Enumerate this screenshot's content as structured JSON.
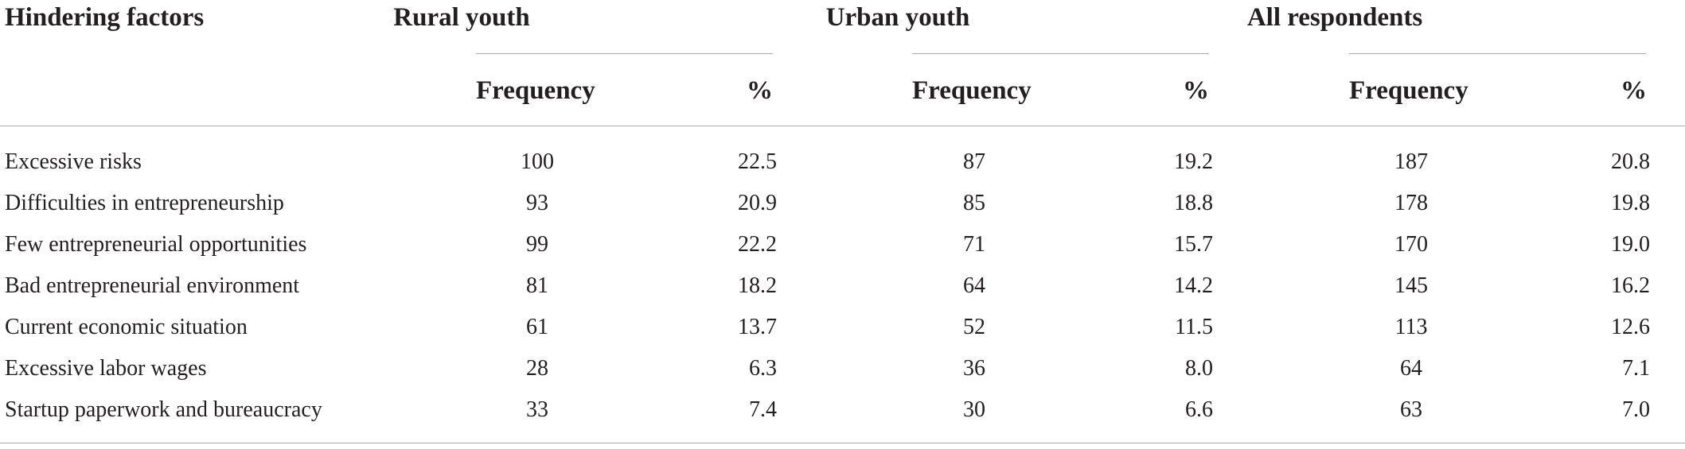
{
  "table": {
    "header": {
      "first_column": "Hindering factors",
      "groups": [
        {
          "label": "Rural youth"
        },
        {
          "label": "Urban youth"
        },
        {
          "label": "All respondents"
        }
      ],
      "sub_columns": [
        "Frequency",
        "%"
      ]
    },
    "rows": [
      {
        "factor": "Excessive risks",
        "values": [
          "100",
          "22.5",
          "87",
          "19.2",
          "187",
          "20.8"
        ]
      },
      {
        "factor": "Difficulties in entrepreneurship",
        "values": [
          "93",
          "20.9",
          "85",
          "18.8",
          "178",
          "19.8"
        ]
      },
      {
        "factor": "Few entrepreneurial opportunities",
        "values": [
          "99",
          "22.2",
          "71",
          "15.7",
          "170",
          "19.0"
        ]
      },
      {
        "factor": "Bad entrepreneurial environment",
        "values": [
          "81",
          "18.2",
          "64",
          "14.2",
          "145",
          "16.2"
        ]
      },
      {
        "factor": "Current economic situation",
        "values": [
          "61",
          "13.7",
          "52",
          "11.5",
          "113",
          "12.6"
        ]
      },
      {
        "factor": "Excessive labor wages",
        "values": [
          "28",
          "6.3",
          "36",
          "8.0",
          "64",
          "7.1"
        ]
      },
      {
        "factor": "Startup paperwork and bureaucracy",
        "values": [
          "33",
          "7.4",
          "30",
          "6.6",
          "63",
          "7.0"
        ]
      }
    ]
  }
}
